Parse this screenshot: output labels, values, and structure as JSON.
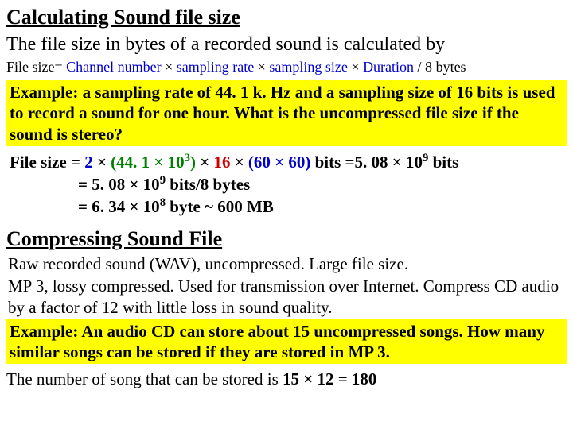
{
  "colors": {
    "background": "#ffffff",
    "text": "#000000",
    "highlight": "#ffff00",
    "blue": "#0000cc",
    "green": "#008000",
    "red": "#cc0000"
  },
  "fonts": {
    "family": "Times New Roman",
    "heading_size_pt": 26,
    "intro_size_pt": 24,
    "formula_size_pt": 18,
    "body_size_pt": 21
  },
  "heading1": "Calculating Sound file size",
  "intro": "The file size in bytes of a recorded sound is calculated by",
  "formula": {
    "lhs": "File size= ",
    "term1": "Channel number",
    "sep": " × ",
    "term2": "sampling rate",
    "term3": "sampling size",
    "term4": "Duration",
    "div": " / 8",
    "unit": "  bytes"
  },
  "example1": "Example: a sampling rate of 44. 1 k. Hz and a sampling size of 16 bits is used to record a sound for one hour. What is the uncompressed file size if the sound is stereo?",
  "calc": {
    "lead": "File size = ",
    "ch": "2",
    "mul": " × ",
    "rate_open": "(44. 1 × 10",
    "rate_exp": "3",
    "rate_close": ")",
    "size": "16",
    "dur": "(60  × 60)",
    "bits_eq": " bits =",
    "res1_mant": "5. 08 × 10",
    "res1_exp": "9",
    "res1_unit": "  bits",
    "line2a": "= 5. 08 × 10",
    "line2exp": "9",
    "line2b": "  bits/8   bytes",
    "line3a": "= 6. 34 × 10",
    "line3exp": "8",
    "line3b": "  byte ~ 600 MB"
  },
  "heading2": "Compressing Sound File",
  "para1": "Raw recorded sound (WAV), uncompressed. Large file size.",
  "para2": "MP 3, lossy compressed. Used for transmission over Internet. Compress CD audio by a factor of 12 with little loss in sound quality.",
  "example2": "Example: An audio CD can store about 15 uncompressed songs. How many similar songs can be stored if they are stored in MP 3.",
  "answer_pre": "The number of song that can be stored is ",
  "answer_bold": "15 × 12 = 180"
}
